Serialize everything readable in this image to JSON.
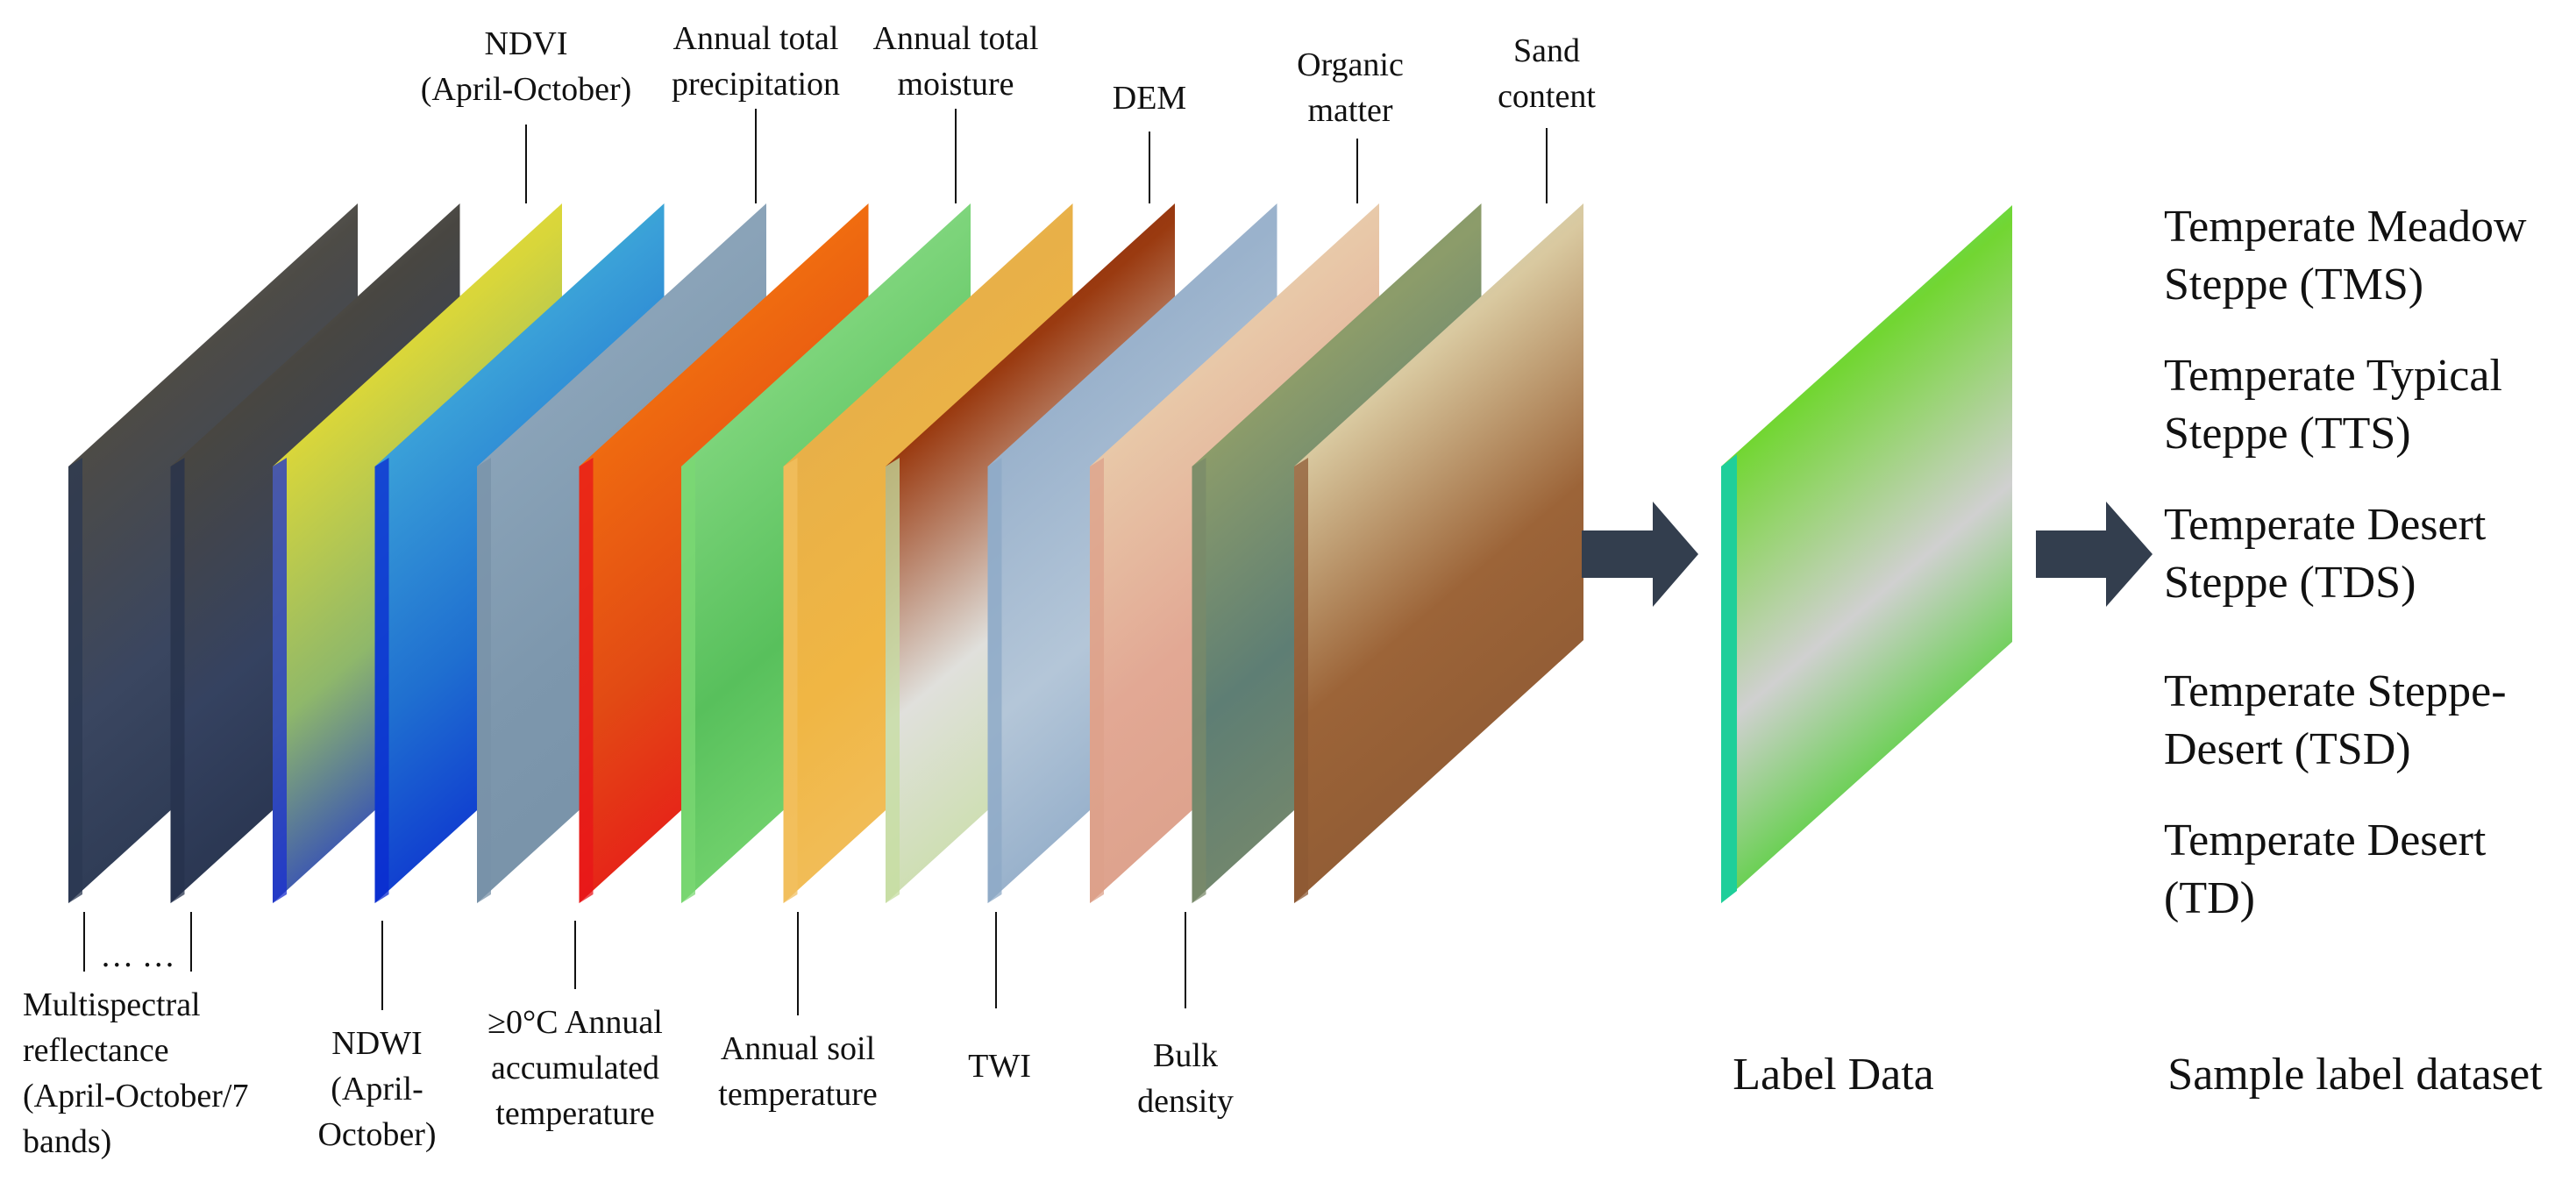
{
  "layers": [
    {
      "id": "ms1",
      "name": "multispectral-layer-1",
      "colors": [
        "#8a8a86",
        "#4d4b46",
        "#3a4660",
        "#2b3852"
      ]
    },
    {
      "id": "ms2",
      "name": "multispectral-layer-2",
      "colors": [
        "#858581",
        "#484641",
        "#354260",
        "#26324c"
      ]
    },
    {
      "id": "ndvi",
      "name": "ndvi-layer",
      "colors": [
        "#f3e93a",
        "#d9d63a",
        "#8fb86a",
        "#1a2fcf"
      ]
    },
    {
      "id": "ndwi",
      "name": "ndwi-layer",
      "colors": [
        "#3ae0b8",
        "#3aa0d8",
        "#1f6fd0",
        "#0a2ad0"
      ]
    },
    {
      "id": "accum",
      "name": "accumulated-temperature-layer",
      "colors": [
        "#8ca6bc",
        "#8aa3b8",
        "#7d97ad",
        "#7892a8"
      ]
    },
    {
      "id": "precip",
      "name": "precipitation-layer",
      "colors": [
        "#ff8a00",
        "#ef6a10",
        "#e24a14",
        "#e8141a"
      ]
    },
    {
      "id": "moist",
      "name": "moisture-layer",
      "colors": [
        "#9be69a",
        "#7cd47a",
        "#58c05c",
        "#7bd873"
      ]
    },
    {
      "id": "soilt",
      "name": "soil-temperature-layer",
      "colors": [
        "#f2c25a",
        "#e8b048",
        "#f0b644",
        "#f2c060"
      ]
    },
    {
      "id": "dem",
      "name": "dem-layer",
      "colors": [
        "#7a1a06",
        "#9a3a10",
        "#e0e0dc",
        "#c6dea0"
      ]
    },
    {
      "id": "twi",
      "name": "twi-layer",
      "colors": [
        "#a8bcd2",
        "#9ab2cc",
        "#b4c6d8",
        "#8ca8c6"
      ]
    },
    {
      "id": "organic",
      "name": "organic-matter-layer",
      "colors": [
        "#efe0c4",
        "#e8c8a8",
        "#e2a894",
        "#dca08a"
      ]
    },
    {
      "id": "bulk",
      "name": "bulk-density-layer",
      "colors": [
        "#6e8e6a",
        "#8c9c6a",
        "#5e7e74",
        "#7a8a6a"
      ]
    },
    {
      "id": "sand",
      "name": "sand-content-layer",
      "colors": [
        "#bfd6d0",
        "#d9c9a0",
        "#9c6438",
        "#8e5a34"
      ]
    }
  ],
  "label_layer_colors": [
    "#35e8c8",
    "#72d632",
    "#d0d0d0",
    "#3ad018"
  ],
  "arrow_color": "#333e4e",
  "labels": {
    "ndvi": [
      "NDVI",
      "(April-October)"
    ],
    "precip": [
      "Annual total",
      "precipitation"
    ],
    "moisture": [
      "Annual total",
      "moisture"
    ],
    "dem": "DEM",
    "organic": [
      "Organic",
      "matter"
    ],
    "sand": [
      "Sand",
      "content"
    ],
    "dots": "… …",
    "multispectral": [
      "Multispectral",
      "reflectance",
      "(April-October/7",
      "bands)"
    ],
    "ndwi": [
      "NDWI",
      "(April-",
      "October)"
    ],
    "accum": [
      "≥0°C Annual",
      "accumulated",
      "temperature"
    ],
    "soil_temp": [
      "Annual soil",
      "temperature"
    ],
    "twi": "TWI",
    "bulk": [
      "Bulk",
      "density"
    ],
    "label_data": "Label Data",
    "sample_label_dataset": "Sample label dataset"
  },
  "classes": [
    [
      "Temperate Meadow",
      "Steppe (TMS)"
    ],
    [
      "Temperate Typical",
      "Steppe (TTS)"
    ],
    [
      "Temperate Desert",
      "Steppe (TDS)"
    ],
    [
      "Temperate Steppe-",
      "Desert (TSD)"
    ],
    [
      "Temperate Desert",
      "(TD)"
    ]
  ]
}
